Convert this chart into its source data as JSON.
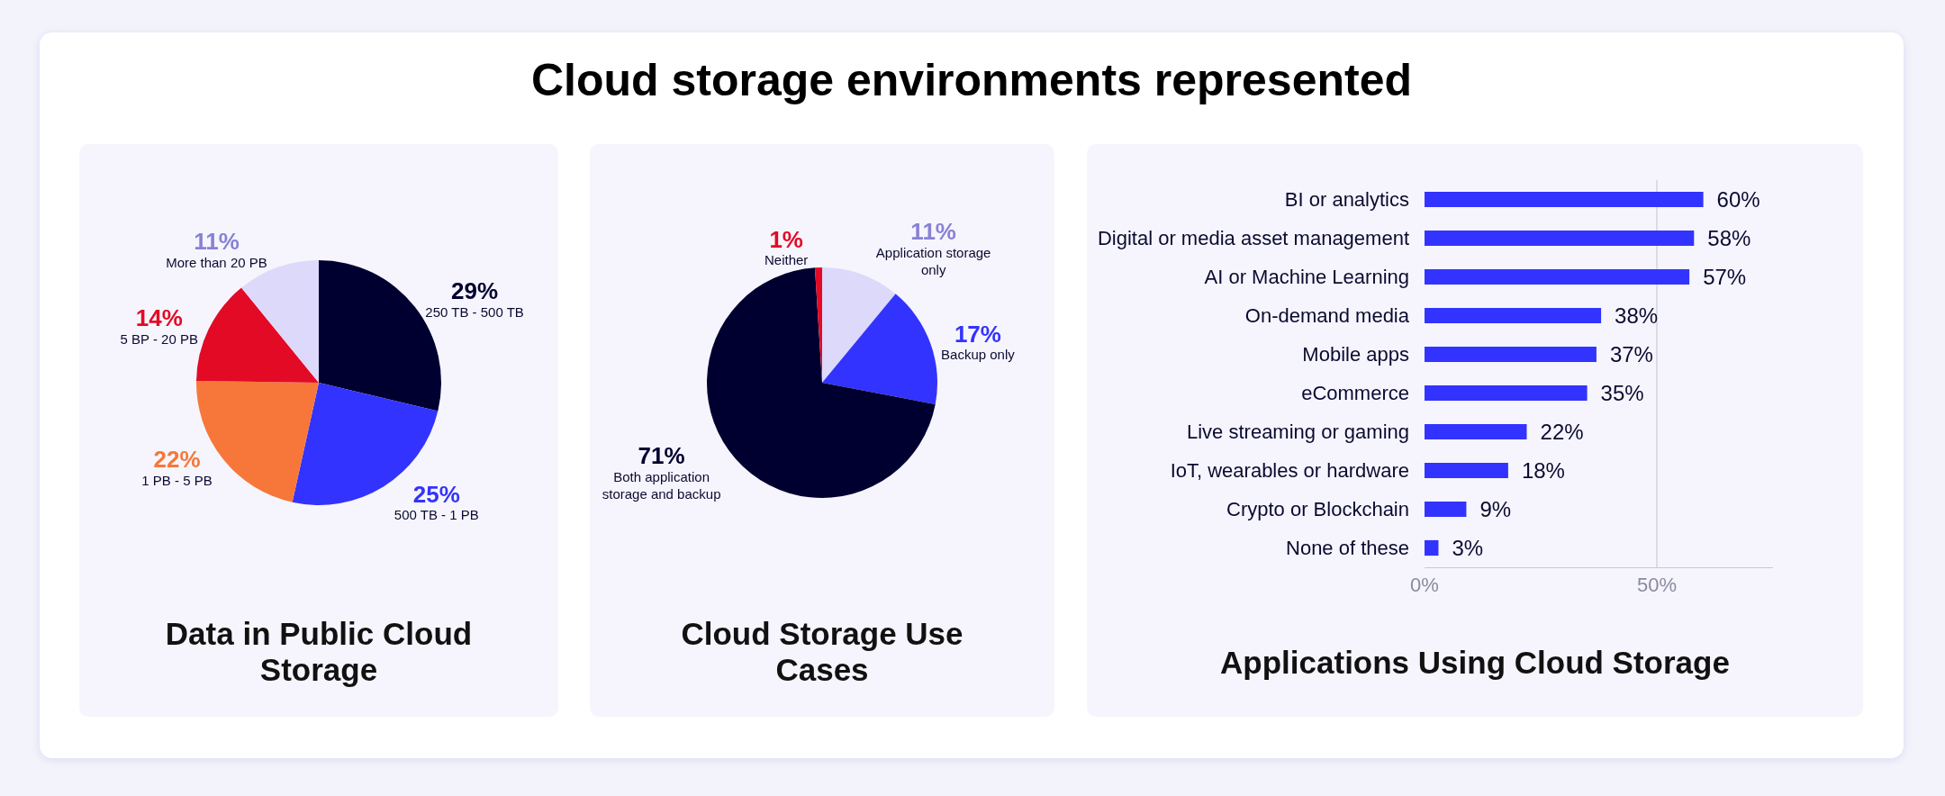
{
  "chart_data": [
    {
      "type": "other",
      "title": "Cloud storage environments represented"
    },
    {
      "type": "pie",
      "title": "Data in Public Cloud Storage",
      "categories": [
        "250 TB - 500 TB",
        "500 TB - 1 PB",
        "1 PB - 5 PB",
        "5 BP - 20 PB",
        "More than 20 PB"
      ],
      "values": [
        29,
        25,
        22,
        14,
        11
      ],
      "value_labels": [
        "29%",
        "25%",
        "22%",
        "14%",
        "11%"
      ],
      "colors": [
        "#000030",
        "#3333ff",
        "#f7773a",
        "#e30a25",
        "#dcd9fb"
      ]
    },
    {
      "type": "pie",
      "title": "Cloud Storage Use Cases",
      "categories": [
        "Application storage only",
        "Backup only",
        "Both application storage and backup",
        "Neither"
      ],
      "values": [
        11,
        17,
        71,
        1
      ],
      "value_labels": [
        "11%",
        "17%",
        "71%",
        "1%"
      ],
      "colors": [
        "#dcd9fb",
        "#3333ff",
        "#000030",
        "#e30a25"
      ]
    },
    {
      "type": "bar",
      "orientation": "horizontal",
      "title": "Applications Using Cloud Storage",
      "categories": [
        "BI or analytics",
        "Digital or media asset management",
        "AI or Machine Learning",
        "On-demand media",
        "Mobile apps",
        "eCommerce",
        "Live streaming or gaming",
        "IoT, wearables or hardware",
        "Crypto or Blockchain",
        "None of these"
      ],
      "values": [
        60,
        58,
        57,
        38,
        37,
        35,
        22,
        18,
        9,
        3
      ],
      "value_labels": [
        "60%",
        "58%",
        "57%",
        "38%",
        "37%",
        "35%",
        "22%",
        "18%",
        "9%",
        "3%"
      ],
      "color": "#3333ff",
      "xlim": [
        0,
        75
      ],
      "xticks": [
        {
          "value": 0,
          "label": "0%"
        },
        {
          "value": 50,
          "label": "50%"
        }
      ],
      "grid": "x"
    }
  ]
}
